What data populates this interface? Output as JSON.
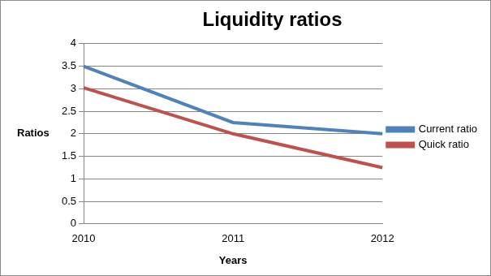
{
  "chart_data": {
    "type": "line",
    "title": "Liquidity ratios",
    "x_label": "Years",
    "y_label": "Ratios",
    "categories": [
      "2010",
      "2011",
      "2012"
    ],
    "series": [
      {
        "name": "Current ratio",
        "color": "#4f81bd",
        "values": [
          3.5,
          2.25,
          2.0
        ]
      },
      {
        "name": "Quick ratio",
        "color": "#c0504d",
        "values": [
          3.02,
          2.0,
          1.25
        ]
      }
    ],
    "ylim": [
      0,
      4
    ],
    "yticks": [
      0,
      0.5,
      1,
      1.5,
      2,
      2.5,
      3,
      3.5,
      4
    ],
    "grid": true,
    "legend": "right"
  }
}
